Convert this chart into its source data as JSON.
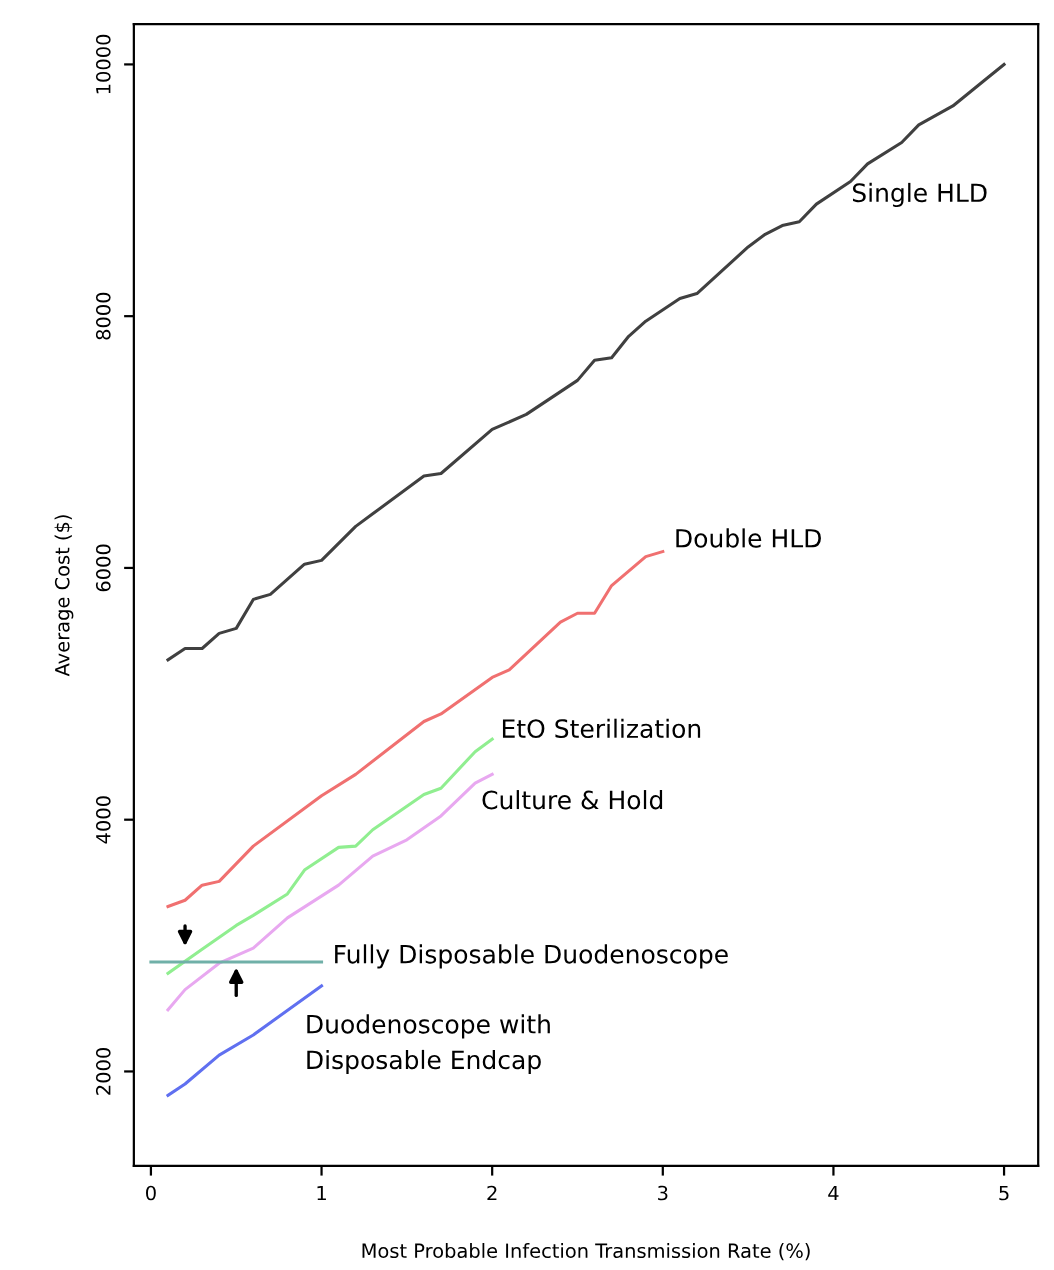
{
  "chart_data": {
    "type": "line",
    "xlabel": "Most Probable Infection Transmission Rate (%)",
    "ylabel": "Average Cost ($)",
    "xlim": [
      -0.1,
      5.2
    ],
    "ylim": [
      1250,
      10320
    ],
    "xticks": [
      0,
      1,
      2,
      3,
      4,
      5
    ],
    "yticks": [
      2000,
      4000,
      6000,
      8000,
      10000
    ],
    "grid": false,
    "marker": "none",
    "line_style": "solid",
    "series": [
      {
        "name": "Single HLD",
        "color": "#404040",
        "x": [
          0.1,
          0.2,
          0.3,
          0.4,
          0.5,
          0.6,
          0.7,
          0.9,
          1.0,
          1.2,
          1.3,
          1.6,
          1.7,
          2.0,
          2.2,
          2.5,
          2.6,
          2.7,
          2.8,
          2.9,
          3.1,
          3.2,
          3.5,
          3.6,
          3.7,
          3.8,
          3.9,
          4.1,
          4.2,
          4.4,
          4.5,
          4.7,
          4.9,
          5.0
        ],
        "values": [
          5270,
          5360,
          5360,
          5480,
          5520,
          5750,
          5790,
          6030,
          6060,
          6330,
          6430,
          6730,
          6750,
          7100,
          7220,
          7490,
          7650,
          7670,
          7840,
          7960,
          8140,
          8180,
          8550,
          8650,
          8720,
          8750,
          8890,
          9070,
          9210,
          9380,
          9520,
          9670,
          9890,
          10000
        ]
      },
      {
        "name": "Double HLD",
        "color": "#f07070",
        "x": [
          0.1,
          0.2,
          0.3,
          0.4,
          0.6,
          1.0,
          1.2,
          1.6,
          1.7,
          2.0,
          2.1,
          2.4,
          2.5,
          2.6,
          2.7,
          2.9,
          3.0
        ],
        "values": [
          3310,
          3360,
          3480,
          3510,
          3790,
          4190,
          4360,
          4780,
          4840,
          5130,
          5190,
          5570,
          5640,
          5640,
          5860,
          6090,
          6130
        ]
      },
      {
        "name": "EtO Sterilization",
        "color": "#90ee90",
        "x": [
          0.1,
          0.3,
          0.5,
          0.6,
          0.8,
          0.9,
          1.1,
          1.2,
          1.3,
          1.6,
          1.7,
          1.9,
          2.0
        ],
        "values": [
          2780,
          2970,
          3160,
          3240,
          3410,
          3600,
          3780,
          3790,
          3920,
          4200,
          4250,
          4540,
          4640
        ]
      },
      {
        "name": "Culture & Hold",
        "color": "#e8a8f0",
        "x": [
          0.1,
          0.2,
          0.4,
          0.6,
          0.8,
          1.1,
          1.3,
          1.5,
          1.7,
          1.9,
          2.0
        ],
        "values": [
          2490,
          2650,
          2860,
          2980,
          3220,
          3480,
          3710,
          3840,
          4030,
          4290,
          4360
        ]
      },
      {
        "name": "Duodenoscope with\nDisposable Endcap",
        "color": "#6070f0",
        "x": [
          0.1,
          0.2,
          0.4,
          0.6,
          1.0
        ],
        "values": [
          1810,
          1900,
          2130,
          2290,
          2680
        ]
      },
      {
        "name": "Fully Disposable Duodenoscope",
        "color": "#70b0a8",
        "x": [
          0.0,
          1.0
        ],
        "values": [
          2870,
          2870
        ]
      }
    ]
  }
}
